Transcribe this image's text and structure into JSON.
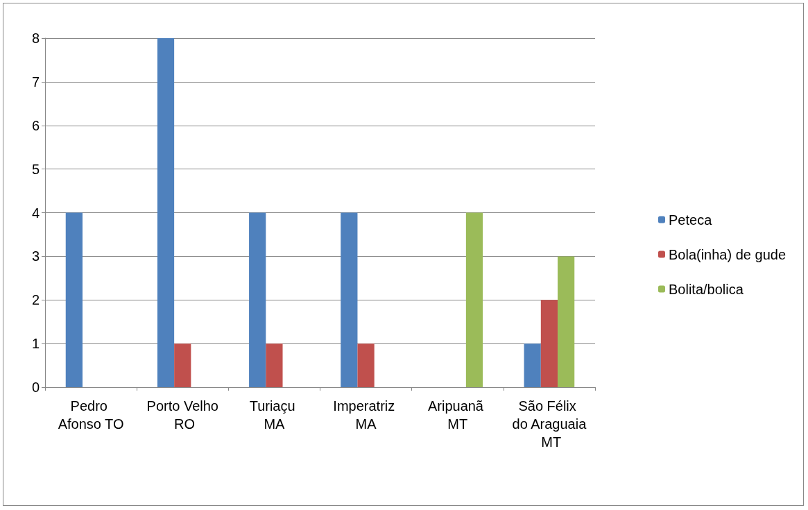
{
  "chart_data": {
    "type": "bar",
    "categories": [
      "Pedro Afonso TO",
      "Porto Velho RO",
      "Turiaçu MA",
      "Imperatriz MA",
      "Aripuanã MT",
      "São Félix do Araguaia MT"
    ],
    "series": [
      {
        "name": "Peteca",
        "color": "#4f81bd",
        "values": [
          4,
          8,
          4,
          4,
          null,
          1
        ]
      },
      {
        "name": "Bola(inha) de gude",
        "color": "#c0504d",
        "values": [
          null,
          1,
          1,
          1,
          null,
          2
        ]
      },
      {
        "name": "Bolita/bolica",
        "color": "#9bbb59",
        "values": [
          null,
          null,
          null,
          null,
          4,
          3
        ]
      }
    ],
    "ylim": [
      0,
      8
    ],
    "yticks": [
      0,
      1,
      2,
      3,
      4,
      5,
      6,
      7,
      8
    ],
    "grid": "y",
    "legend": "right"
  }
}
